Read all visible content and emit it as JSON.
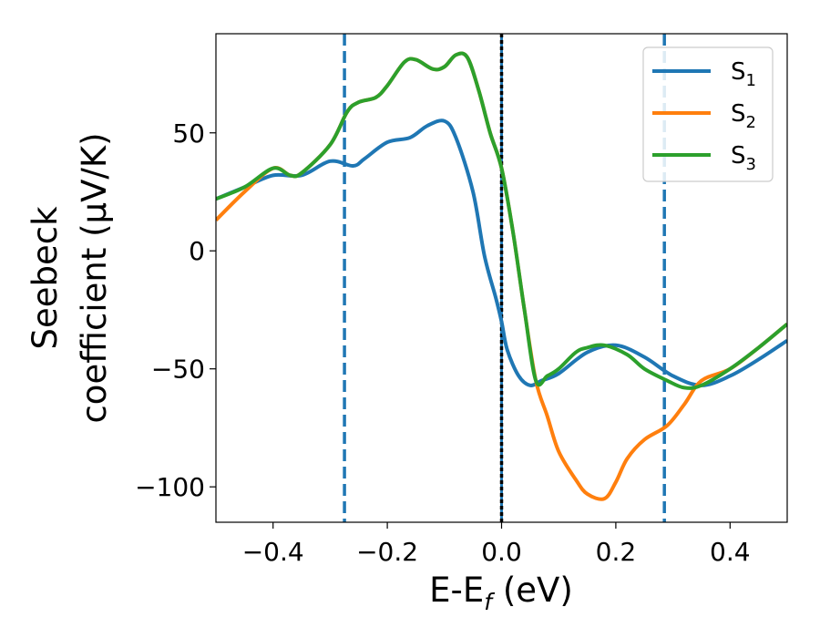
{
  "chart_data": {
    "type": "line",
    "xlabel": "E-E_f (eV)",
    "ylabel_line1": "Seebeck",
    "ylabel_line2": "coefficient  (μV/K)",
    "xlim": [
      -0.5,
      0.5
    ],
    "ylim": [
      -115,
      92
    ],
    "xticks": [
      -0.4,
      -0.2,
      0.0,
      0.2,
      0.4
    ],
    "xtick_labels": [
      "−0.4",
      "−0.2",
      "0.0",
      "0.2",
      "0.4"
    ],
    "yticks": [
      50,
      0,
      -50,
      -100
    ],
    "ytick_labels": [
      "50",
      "0",
      "−50",
      "−100"
    ],
    "grid": false,
    "legend_position": "top-right",
    "vlines": [
      {
        "x": -0.275,
        "style": "dashed",
        "color": "#1f77b4"
      },
      {
        "x": 0.0,
        "style": "solid",
        "color": "#1f77b4"
      },
      {
        "x": 0.0,
        "style": "dotted",
        "color": "#000000"
      },
      {
        "x": 0.285,
        "style": "dashed",
        "color": "#1f77b4"
      }
    ],
    "series": [
      {
        "name": "S_1",
        "color": "#1f77b4",
        "x": [
          -0.5,
          -0.45,
          -0.4,
          -0.35,
          -0.3,
          -0.26,
          -0.24,
          -0.2,
          -0.16,
          -0.13,
          -0.1,
          -0.08,
          -0.05,
          -0.03,
          -0.01,
          0.0,
          0.01,
          0.03,
          0.05,
          0.07,
          0.1,
          0.15,
          0.2,
          0.25,
          0.3,
          0.35,
          0.4,
          0.45,
          0.5
        ],
        "y": [
          22,
          27,
          32,
          32,
          38,
          36,
          39,
          46,
          48,
          53,
          55,
          48,
          25,
          -2,
          -20,
          -30,
          -42,
          -53,
          -57,
          -55,
          -52,
          -43,
          -40,
          -45,
          -53,
          -57,
          -53,
          -46,
          -38
        ]
      },
      {
        "name": "S_2",
        "color": "#ff7f0e",
        "x": [
          -0.5,
          -0.45,
          -0.4,
          -0.37,
          -0.35,
          -0.3,
          -0.27,
          -0.25,
          -0.22,
          -0.2,
          -0.17,
          -0.15,
          -0.12,
          -0.1,
          -0.08,
          -0.06,
          -0.04,
          -0.02,
          0.0,
          0.02,
          0.04,
          0.06,
          0.08,
          0.1,
          0.13,
          0.15,
          0.18,
          0.2,
          0.22,
          0.25,
          0.29,
          0.32,
          0.35,
          0.4,
          0.45,
          0.5
        ],
        "y": [
          13,
          25,
          35,
          32,
          33,
          45,
          59,
          63,
          65,
          70,
          80,
          81,
          77,
          78,
          83,
          82,
          68,
          50,
          35,
          8,
          -25,
          -55,
          -70,
          -85,
          -97,
          -103,
          -105,
          -98,
          -88,
          -80,
          -74,
          -65,
          -55,
          -50,
          -41,
          -31
        ]
      },
      {
        "name": "S_3",
        "color": "#2ca02c",
        "x": [
          -0.5,
          -0.45,
          -0.4,
          -0.37,
          -0.35,
          -0.3,
          -0.27,
          -0.25,
          -0.22,
          -0.2,
          -0.17,
          -0.15,
          -0.12,
          -0.1,
          -0.08,
          -0.06,
          -0.04,
          -0.02,
          0.0,
          0.02,
          0.04,
          0.06,
          0.08,
          0.1,
          0.13,
          0.15,
          0.18,
          0.22,
          0.25,
          0.29,
          0.32,
          0.35,
          0.4,
          0.45,
          0.5
        ],
        "y": [
          22,
          27,
          35,
          32,
          33,
          45,
          59,
          63,
          65,
          70,
          80,
          81,
          77,
          78,
          83,
          82,
          68,
          50,
          35,
          8,
          -25,
          -55,
          -53,
          -50,
          -43,
          -41,
          -40,
          -44,
          -50,
          -55,
          -58,
          -57,
          -50,
          -41,
          -31
        ]
      }
    ],
    "legend": {
      "entries": [
        {
          "base": "S",
          "sub": "1",
          "color": "#1f77b4"
        },
        {
          "base": "S",
          "sub": "2",
          "color": "#ff7f0e"
        },
        {
          "base": "S",
          "sub": "3",
          "color": "#2ca02c"
        }
      ]
    }
  }
}
